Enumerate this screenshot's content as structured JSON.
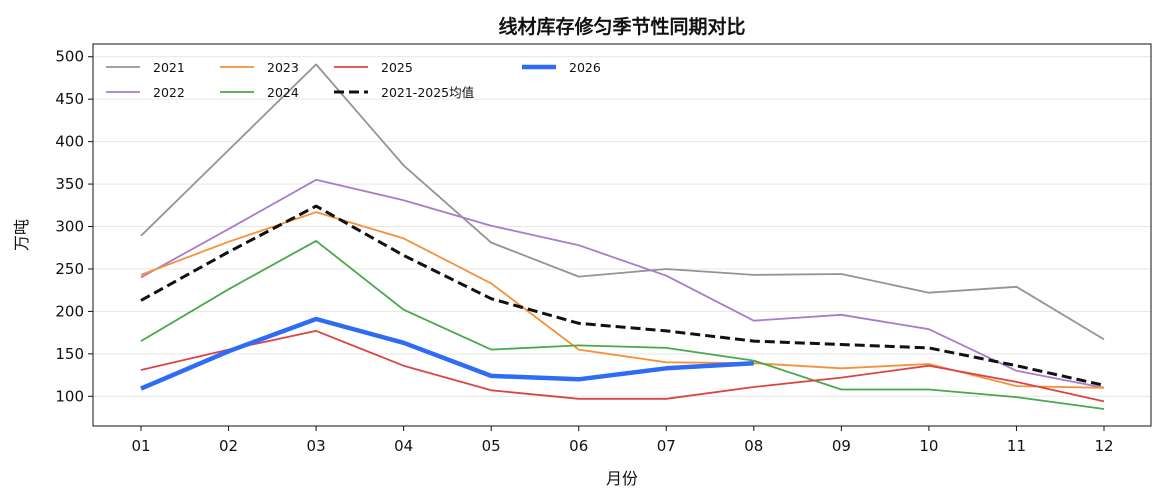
{
  "chart_data": {
    "type": "line",
    "title": "线材库存修匀季节性同期对比",
    "xlabel": "月份",
    "ylabel": "万吨",
    "categories": [
      "01",
      "02",
      "03",
      "04",
      "05",
      "06",
      "07",
      "08",
      "09",
      "10",
      "11",
      "12"
    ],
    "ylim": [
      65,
      515
    ],
    "yticks": [
      100,
      150,
      200,
      250,
      300,
      350,
      400,
      450,
      500
    ],
    "grid": "horizontal",
    "legend_position": "top-left",
    "series": [
      {
        "name": "2021",
        "color": "#949494",
        "style": "solid",
        "weight": "normal",
        "values": [
          289,
          390,
          491,
          372,
          281,
          241,
          250,
          243,
          244,
          222,
          229,
          167
        ]
      },
      {
        "name": "2022",
        "color": "#a87ccc",
        "style": "solid",
        "weight": "normal",
        "values": [
          240,
          297,
          355,
          331,
          301,
          278,
          242,
          189,
          196,
          179,
          130,
          110
        ]
      },
      {
        "name": "2023",
        "color": "#f5913a",
        "style": "solid",
        "weight": "normal",
        "values": [
          243,
          282,
          317,
          286,
          233,
          155,
          140,
          139,
          133,
          138,
          112,
          110
        ]
      },
      {
        "name": "2024",
        "color": "#49a94a",
        "style": "solid",
        "weight": "normal",
        "values": [
          165,
          226,
          283,
          202,
          155,
          160,
          157,
          142,
          108,
          108,
          99,
          85
        ]
      },
      {
        "name": "2025",
        "color": "#d94545",
        "style": "solid",
        "weight": "normal",
        "values": [
          131,
          155,
          177,
          136,
          107,
          97,
          97,
          111,
          122,
          136,
          117,
          94
        ]
      },
      {
        "name": "2021-2025均值",
        "color": "#111111",
        "style": "dashed",
        "weight": "bold",
        "values": [
          213,
          270,
          324,
          266,
          215,
          186,
          177,
          165,
          161,
          157,
          136,
          113
        ]
      },
      {
        "name": "2026",
        "color": "#2f6cf6",
        "style": "solid",
        "weight": "heavy",
        "values": [
          109,
          153,
          191,
          163,
          124,
          120,
          133,
          139,
          null,
          null,
          null,
          null
        ]
      }
    ]
  }
}
